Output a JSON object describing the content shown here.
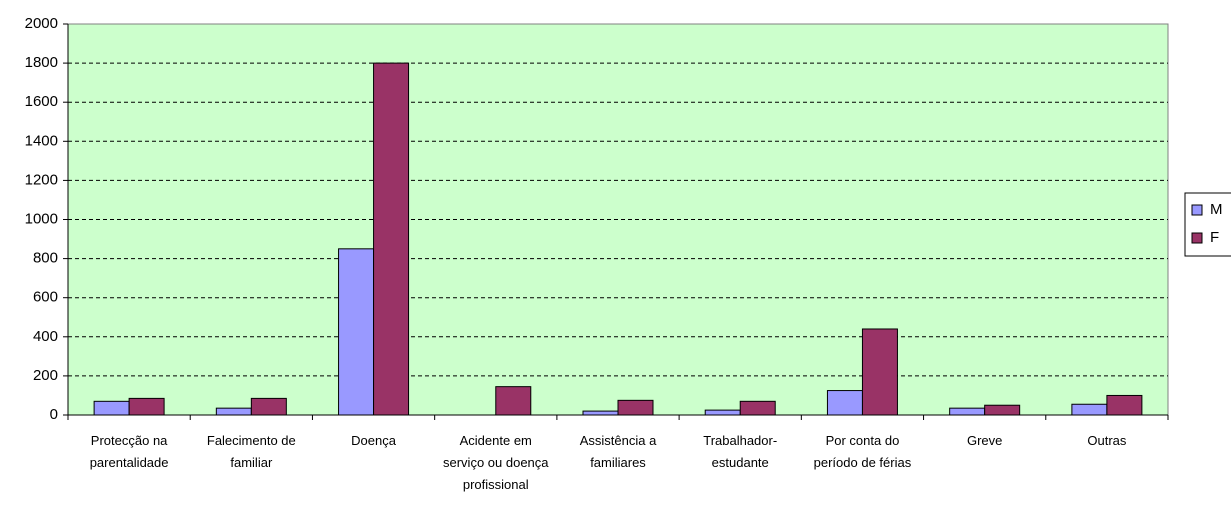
{
  "chart_data": {
    "type": "bar",
    "categories": [
      "Protecção na parentalidade",
      "Falecimento de familiar",
      "Doença",
      "Acidente em serviço ou doença profissional",
      "Assistência a familiares",
      "Trabalhador-estudante",
      "Por conta do período de férias",
      "Greve",
      "Outras"
    ],
    "series": [
      {
        "name": "M",
        "color": "#9999ff",
        "values": [
          70,
          35,
          850,
          0,
          20,
          25,
          125,
          35,
          55
        ]
      },
      {
        "name": "F",
        "color": "#993366",
        "values": [
          85,
          85,
          1800,
          145,
          75,
          70,
          440,
          50,
          100
        ]
      }
    ],
    "ylim": [
      0,
      2000
    ],
    "yticks": [
      0,
      200,
      400,
      600,
      800,
      1000,
      1200,
      1400,
      1600,
      1800,
      2000
    ],
    "grid": true,
    "legend": "right",
    "background": "#ccffcc"
  }
}
